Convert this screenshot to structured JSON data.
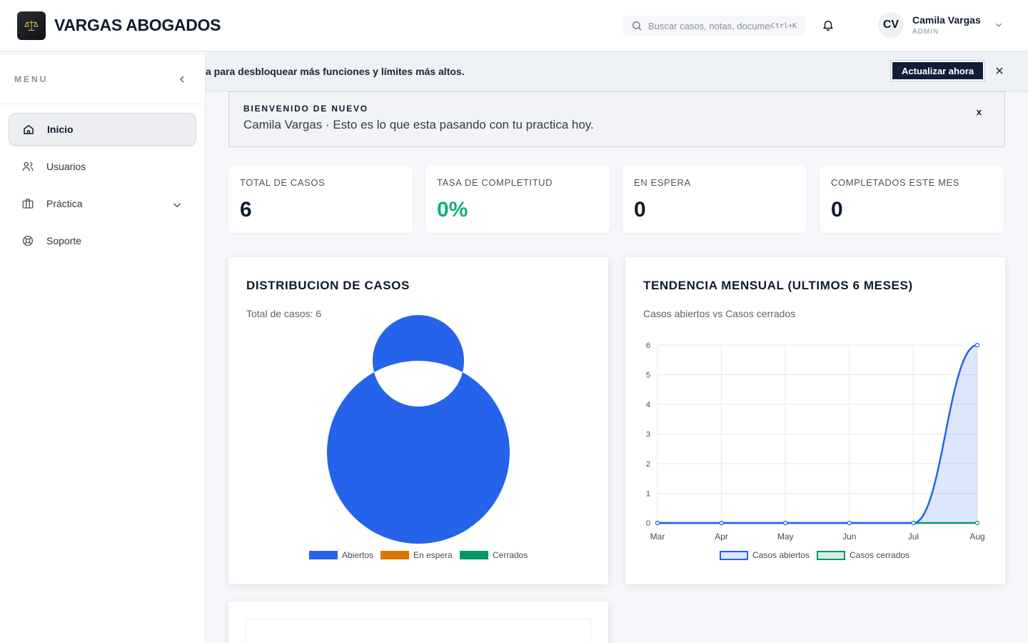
{
  "header": {
    "brand": "VARGAS ABOGADOS",
    "search_placeholder": "Buscar casos, notas, documentos...",
    "search_shortcut": "Ctrl+K",
    "user": {
      "initials": "CV",
      "name": "Camila Vargas",
      "role": "ADMIN"
    }
  },
  "sidebar": {
    "title": "MENU",
    "items": [
      {
        "label": "Inicio",
        "icon": "home-icon",
        "active": true
      },
      {
        "label": "Usuarios",
        "icon": "users-icon"
      },
      {
        "label": "Práctica",
        "icon": "briefcase-icon",
        "expandable": true
      },
      {
        "label": "Soporte",
        "icon": "lifebuoy-icon"
      }
    ]
  },
  "upgrade_banner": {
    "text": "a para desbloquear más funciones y límites más altos.",
    "button": "Actualizar ahora"
  },
  "welcome": {
    "kicker": "BIENVENIDO DE NUEVO",
    "message": "Camila Vargas · Esto es lo que esta pasando con tu practica hoy.",
    "close": "x"
  },
  "stats": [
    {
      "label": "TOTAL DE CASOS",
      "value": "6"
    },
    {
      "label": "TASA DE COMPLETITUD",
      "value": "0%"
    },
    {
      "label": "EN ESPERA",
      "value": "0"
    },
    {
      "label": "COMPLETADOS ESTE MES",
      "value": "0"
    }
  ],
  "colors": {
    "accent_navy": "#0f1f3a",
    "success_green": "#10b07a",
    "abiertos": "#2563eb",
    "en_espera": "#d97706",
    "cerrados": "#059669"
  },
  "chart_data": [
    {
      "type": "pie",
      "title": "DISTRIBUCION DE CASOS",
      "subtitle": "Total de casos: 6",
      "categories": [
        "Abiertos",
        "En espera",
        "Cerrados"
      ],
      "values": [
        6,
        0,
        0
      ],
      "colors": [
        "#2563eb",
        "#d97706",
        "#059669"
      ],
      "donut": true,
      "legend": "bottom"
    },
    {
      "type": "line",
      "title": "TENDENCIA MENSUAL (ULTIMOS 6 MESES)",
      "subtitle": "Casos abiertos vs Casos cerrados",
      "x": [
        "Mar",
        "Apr",
        "May",
        "Jun",
        "Jul",
        "Aug"
      ],
      "series": [
        {
          "name": "Casos abiertos",
          "values": [
            0,
            0,
            0,
            0,
            0,
            6
          ],
          "color": "#2563eb",
          "fill": true
        },
        {
          "name": "Casos cerrados",
          "values": [
            0,
            0,
            0,
            0,
            0,
            0
          ],
          "color": "#059669",
          "fill": true
        }
      ],
      "ylim": [
        0,
        6
      ],
      "yticks": [
        0,
        1,
        2,
        3,
        4,
        5,
        6
      ],
      "grid": true,
      "legend": "bottom"
    }
  ]
}
